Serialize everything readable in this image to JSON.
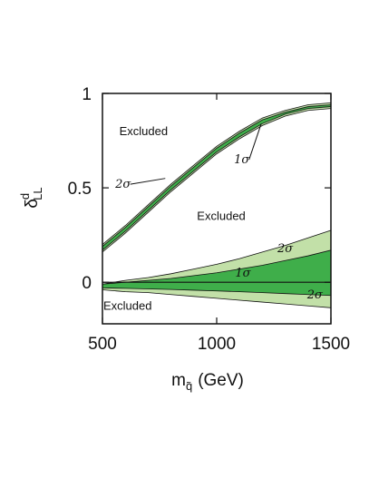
{
  "chart_data": {
    "type": "area",
    "title": "",
    "xlabel": "m",
    "xlabel_subscript": "q̃",
    "xlabel_unit": "(GeV)",
    "ylabel": "δ",
    "ylabel_superscript": "d",
    "ylabel_subscript": "LL",
    "xlim": [
      500,
      1500
    ],
    "ylim": [
      -0.22,
      1.0
    ],
    "x_ticks": [
      500,
      1000,
      1500
    ],
    "x_tick_labels": [
      "500",
      "1000",
      "1500"
    ],
    "y_ticks": [
      0,
      0.5,
      1
    ],
    "y_tick_labels": [
      "0",
      "0.5",
      "1"
    ],
    "grid": false,
    "legend": "none",
    "colors": {
      "one_sigma": "#3fae4a",
      "two_sigma": "#c2e0a8",
      "line": "#111111"
    },
    "x": [
      500,
      600,
      700,
      800,
      900,
      1000,
      1100,
      1200,
      1300,
      1400,
      1500
    ],
    "series": [
      {
        "band": "upper",
        "level": "2σ",
        "lower": [
          0.16,
          0.26,
          0.37,
          0.48,
          0.58,
          0.68,
          0.76,
          0.83,
          0.88,
          0.91,
          0.92
        ],
        "upper": [
          0.2,
          0.3,
          0.41,
          0.52,
          0.62,
          0.72,
          0.8,
          0.87,
          0.91,
          0.94,
          0.95
        ]
      },
      {
        "band": "upper",
        "level": "1σ",
        "lower": [
          0.17,
          0.27,
          0.38,
          0.49,
          0.59,
          0.69,
          0.77,
          0.84,
          0.89,
          0.92,
          0.93
        ],
        "upper": [
          0.19,
          0.29,
          0.4,
          0.51,
          0.61,
          0.71,
          0.79,
          0.86,
          0.9,
          0.93,
          0.94
        ]
      },
      {
        "band": "lower",
        "level": "2σ",
        "lower": [
          -0.04,
          -0.05,
          -0.055,
          -0.065,
          -0.075,
          -0.085,
          -0.095,
          -0.105,
          -0.115,
          -0.125,
          -0.135
        ],
        "upper": [
          -0.01,
          0.01,
          0.025,
          0.045,
          0.07,
          0.095,
          0.125,
          0.16,
          0.195,
          0.235,
          0.275
        ]
      },
      {
        "band": "lower",
        "level": "1σ",
        "lower": [
          -0.03,
          -0.032,
          -0.035,
          -0.038,
          -0.042,
          -0.046,
          -0.05,
          -0.055,
          -0.06,
          -0.065,
          -0.07
        ],
        "upper": [
          -0.01,
          0.0,
          0.01,
          0.02,
          0.035,
          0.05,
          0.07,
          0.09,
          0.115,
          0.14,
          0.17
        ]
      }
    ],
    "zero_line": 0,
    "annotations": [
      {
        "text": "Excluded",
        "x": 680,
        "y": 0.78,
        "kind": "region"
      },
      {
        "text": "Excluded",
        "x": 1020,
        "y": 0.33,
        "kind": "region"
      },
      {
        "text": "Excluded",
        "x": 610,
        "y": -0.145,
        "kind": "region"
      },
      {
        "text": "2σ",
        "x": 590,
        "y": 0.5,
        "kind": "sigma",
        "arrow_to": [
          775,
          0.55
        ]
      },
      {
        "text": "1σ",
        "x": 1110,
        "y": 0.63,
        "kind": "sigma",
        "arrow_to": [
          1195,
          0.84
        ]
      },
      {
        "text": "2σ",
        "x": 1300,
        "y": 0.16,
        "kind": "sigma"
      },
      {
        "text": "1σ",
        "x": 1115,
        "y": 0.03,
        "kind": "sigma"
      },
      {
        "text": "2σ",
        "x": 1430,
        "y": -0.085,
        "kind": "sigma"
      }
    ]
  }
}
